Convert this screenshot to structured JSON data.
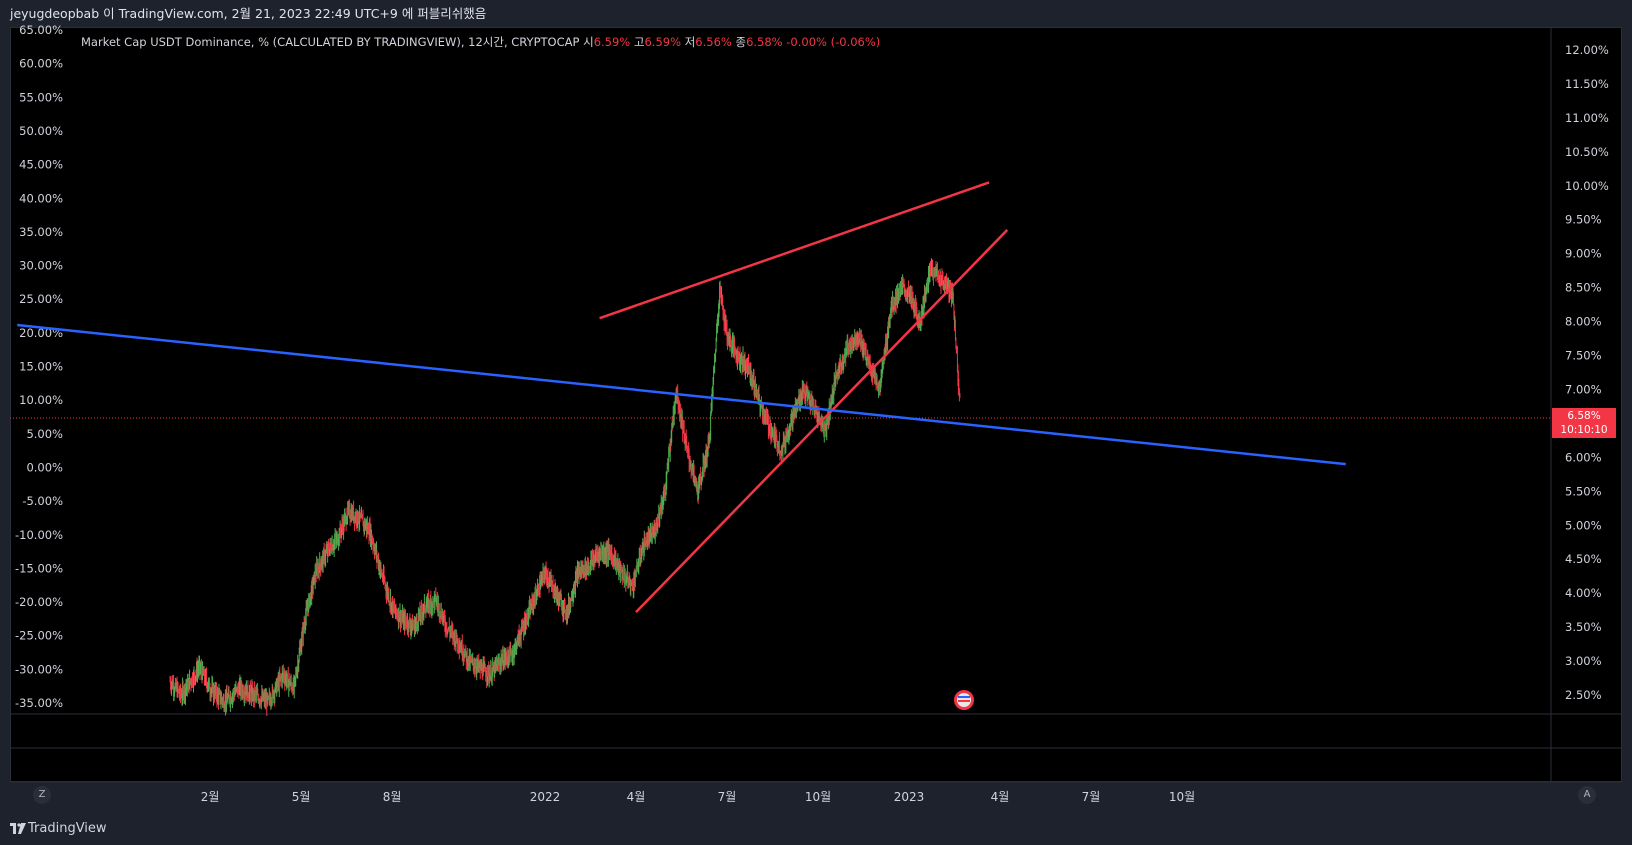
{
  "header": {
    "title": "jeyugdeopbab 이 TradingView.com, 2월 21, 2023 22:49 UTC+9 에 퍼블리쉬했음"
  },
  "legend": {
    "name": "Market Cap USDT Dominance, % (CALCULATED BY TRADINGVIEW), 12시간, CRYPTOCAP",
    "open_label": "시",
    "open": "6.59%",
    "high_label": "고",
    "high": "6.59%",
    "low_label": "저",
    "low": "6.56%",
    "close_label": "종",
    "close": "6.58%",
    "change": "-0.00% (-0.06%)"
  },
  "price_tag": {
    "price": "6.58%",
    "countdown": "10:10:10"
  },
  "footer": {
    "brand": "TradingView"
  },
  "buttons": {
    "zoom": "Z",
    "auto": "A"
  },
  "colors": {
    "up": "#4caf50",
    "down": "#f23645",
    "trend_red": "#f23645",
    "trend_blue": "#2962ff",
    "background": "#000000"
  },
  "chart_data": {
    "type": "line",
    "left_axis_ticks": [
      "65.00%",
      "60.00%",
      "55.00%",
      "50.00%",
      "45.00%",
      "40.00%",
      "35.00%",
      "30.00%",
      "25.00%",
      "20.00%",
      "15.00%",
      "10.00%",
      "5.00%",
      "0.00%",
      "-5.00%",
      "-10.00%",
      "-15.00%",
      "-20.00%",
      "-25.00%",
      "-30.00%",
      "-35.00%"
    ],
    "right_axis_ticks": [
      "12.00%",
      "11.50%",
      "11.00%",
      "10.50%",
      "10.00%",
      "9.50%",
      "9.00%",
      "8.50%",
      "8.00%",
      "7.50%",
      "7.00%",
      "6.50%",
      "6.00%",
      "5.50%",
      "5.00%",
      "4.50%",
      "4.00%",
      "3.50%",
      "3.00%",
      "2.50%"
    ],
    "right_range": [
      2.5,
      12.0
    ],
    "x_ticks": [
      {
        "label": "2월",
        "t": 2021.08
      },
      {
        "label": "5월",
        "t": 2021.33
      },
      {
        "label": "8월",
        "t": 2021.58
      },
      {
        "label": "2022",
        "t": 2022.0
      },
      {
        "label": "4월",
        "t": 2022.25
      },
      {
        "label": "7월",
        "t": 2022.5
      },
      {
        "label": "10월",
        "t": 2022.75
      },
      {
        "label": "2023",
        "t": 2023.0
      },
      {
        "label": "4월",
        "t": 2023.25
      },
      {
        "label": "7월",
        "t": 2023.5
      },
      {
        "label": "10월",
        "t": 2023.75
      }
    ],
    "series": [
      {
        "t": [
          2020.97,
          2021.0,
          2021.05,
          2021.08,
          2021.12,
          2021.16,
          2021.2,
          2021.24,
          2021.28,
          2021.31,
          2021.34,
          2021.37,
          2021.4,
          2021.43,
          2021.46,
          2021.49,
          2021.52,
          2021.55,
          2021.58,
          2021.61,
          2021.64,
          2021.67,
          2021.7,
          2021.73,
          2021.76,
          2021.79,
          2021.82,
          2021.85,
          2021.88,
          2021.91,
          2021.94,
          2021.97,
          2022.0,
          2022.03,
          2022.06,
          2022.09,
          2022.12,
          2022.15,
          2022.18,
          2022.21,
          2022.24,
          2022.27,
          2022.3,
          2022.33,
          2022.36,
          2022.39,
          2022.42,
          2022.45,
          2022.48,
          2022.5,
          2022.53,
          2022.56,
          2022.59,
          2022.62,
          2022.65,
          2022.68,
          2022.71,
          2022.74,
          2022.77,
          2022.8,
          2022.83,
          2022.86,
          2022.89,
          2022.92,
          2022.95,
          2022.98,
          2023.0,
          2023.03,
          2023.06,
          2023.09,
          2023.12,
          2023.14
        ],
        "values": [
          2.7,
          2.5,
          2.9,
          2.6,
          2.4,
          2.6,
          2.5,
          2.4,
          2.8,
          2.6,
          3.6,
          4.3,
          4.6,
          4.8,
          5.2,
          5.1,
          4.9,
          4.3,
          3.8,
          3.6,
          3.5,
          3.8,
          3.9,
          3.5,
          3.3,
          3.0,
          2.9,
          2.8,
          3.0,
          3.1,
          3.5,
          3.9,
          4.3,
          4.0,
          3.7,
          4.3,
          4.4,
          4.6,
          4.6,
          4.3,
          4.1,
          4.7,
          4.9,
          5.5,
          7.0,
          6.1,
          5.5,
          6.2,
          8.5,
          7.8,
          7.5,
          7.3,
          6.8,
          6.4,
          6.1,
          6.6,
          7.0,
          6.7,
          6.4,
          7.2,
          7.6,
          7.8,
          7.4,
          7.0,
          8.2,
          8.5,
          8.4,
          8.0,
          8.8,
          8.6,
          8.4,
          6.8
        ]
      }
    ],
    "trendlines": [
      {
        "name": "upper-resistance",
        "color": "#f23645",
        "points": [
          [
            2022.15,
            8.05
          ],
          [
            2023.22,
            10.05
          ]
        ]
      },
      {
        "name": "lower-support",
        "color": "#f23645",
        "points": [
          [
            2022.25,
            3.72
          ],
          [
            2023.27,
            9.35
          ]
        ]
      },
      {
        "name": "long-term-trend",
        "color": "#2962ff",
        "points": [
          [
            2020.55,
            7.95
          ],
          [
            2024.2,
            5.9
          ]
        ]
      }
    ],
    "current_price": 6.58,
    "grid": false,
    "legend_position": "top-left"
  }
}
